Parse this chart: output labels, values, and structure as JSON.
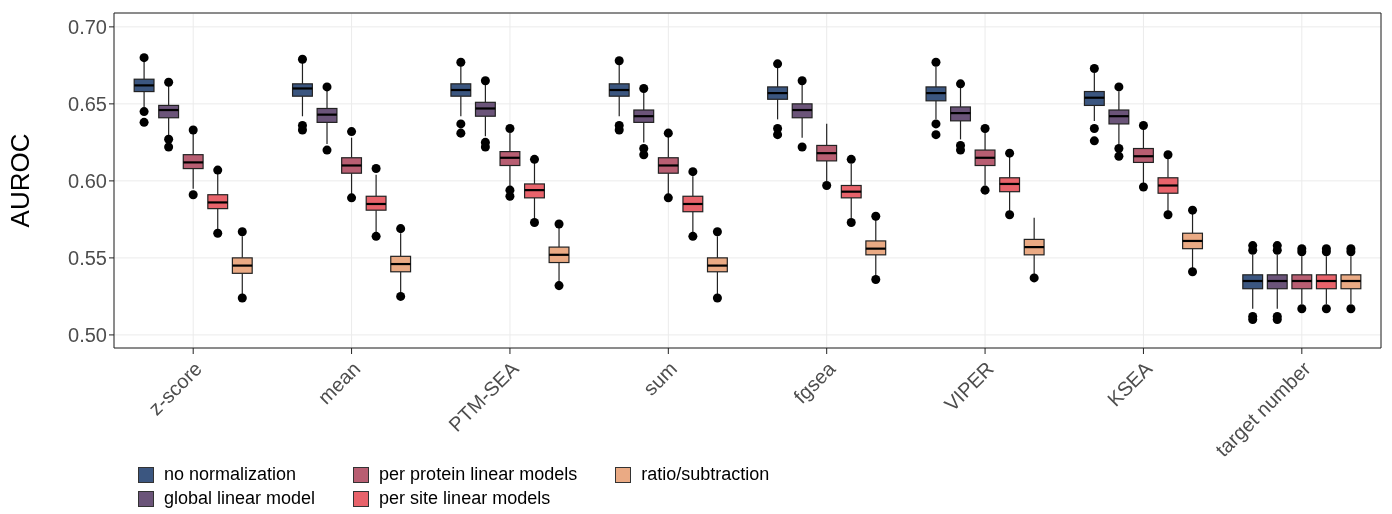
{
  "chart_data": {
    "type": "box",
    "ylabel": "AUROC",
    "categories": [
      "z-score",
      "mean",
      "PTM-SEA",
      "sum",
      "fgsea",
      "VIPER",
      "KSEA",
      "target number"
    ],
    "ylim": [
      0.4915,
      0.709
    ],
    "yticks": [
      {
        "value": 0.5,
        "label": "0.50"
      },
      {
        "value": 0.55,
        "label": "0.55"
      },
      {
        "value": 0.6,
        "label": "0.60"
      },
      {
        "value": 0.65,
        "label": "0.65"
      },
      {
        "value": 0.7,
        "label": "0.70"
      }
    ],
    "grid": true,
    "legend": "bottom",
    "marker": "circle",
    "series": [
      {
        "name": "no normalization",
        "color": "#3b5680",
        "boxes": [
          {
            "low": 0.648,
            "q1": 0.658,
            "median": 0.662,
            "q3": 0.666,
            "high": 0.678,
            "outliers": [
              0.68,
              0.645,
              0.638
            ]
          },
          {
            "low": 0.642,
            "q1": 0.655,
            "median": 0.66,
            "q3": 0.663,
            "high": 0.677,
            "outliers": [
              0.679,
              0.636,
              0.633
            ]
          },
          {
            "low": 0.642,
            "q1": 0.655,
            "median": 0.659,
            "q3": 0.663,
            "high": 0.675,
            "outliers": [
              0.677,
              0.637,
              0.631
            ]
          },
          {
            "low": 0.642,
            "q1": 0.655,
            "median": 0.659,
            "q3": 0.663,
            "high": 0.676,
            "outliers": [
              0.678,
              0.636,
              0.633
            ]
          },
          {
            "low": 0.64,
            "q1": 0.653,
            "median": 0.657,
            "q3": 0.661,
            "high": 0.674,
            "outliers": [
              0.676,
              0.634,
              0.63
            ]
          },
          {
            "low": 0.64,
            "q1": 0.652,
            "median": 0.657,
            "q3": 0.661,
            "high": 0.674,
            "outliers": [
              0.677,
              0.637,
              0.63
            ]
          },
          {
            "low": 0.639,
            "q1": 0.649,
            "median": 0.654,
            "q3": 0.658,
            "high": 0.67,
            "outliers": [
              0.673,
              0.634,
              0.626
            ]
          },
          {
            "low": 0.517,
            "q1": 0.53,
            "median": 0.535,
            "q3": 0.539,
            "high": 0.552,
            "outliers": [
              0.555,
              0.558,
              0.512,
              0.51
            ]
          }
        ]
      },
      {
        "name": "global linear model",
        "color": "#6b5479",
        "boxes": [
          {
            "low": 0.628,
            "q1": 0.641,
            "median": 0.646,
            "q3": 0.649,
            "high": 0.663,
            "outliers": [
              0.664,
              0.627,
              0.622
            ]
          },
          {
            "low": 0.624,
            "q1": 0.638,
            "median": 0.643,
            "q3": 0.647,
            "high": 0.66,
            "outliers": [
              0.661,
              0.62
            ]
          },
          {
            "low": 0.629,
            "q1": 0.642,
            "median": 0.647,
            "q3": 0.651,
            "high": 0.663,
            "outliers": [
              0.665,
              0.625,
              0.622
            ]
          },
          {
            "low": 0.625,
            "q1": 0.638,
            "median": 0.642,
            "q3": 0.646,
            "high": 0.658,
            "outliers": [
              0.66,
              0.621,
              0.617
            ]
          },
          {
            "low": 0.628,
            "q1": 0.641,
            "median": 0.646,
            "q3": 0.65,
            "high": 0.663,
            "outliers": [
              0.665,
              0.622
            ]
          },
          {
            "low": 0.627,
            "q1": 0.639,
            "median": 0.644,
            "q3": 0.648,
            "high": 0.662,
            "outliers": [
              0.663,
              0.623,
              0.62
            ]
          },
          {
            "low": 0.624,
            "q1": 0.637,
            "median": 0.642,
            "q3": 0.646,
            "high": 0.658,
            "outliers": [
              0.661,
              0.621,
              0.616
            ]
          },
          {
            "low": 0.517,
            "q1": 0.53,
            "median": 0.535,
            "q3": 0.539,
            "high": 0.552,
            "outliers": [
              0.555,
              0.558,
              0.512,
              0.51
            ]
          }
        ]
      },
      {
        "name": "per protein linear models",
        "color": "#b85e72",
        "boxes": [
          {
            "low": 0.595,
            "q1": 0.608,
            "median": 0.612,
            "q3": 0.617,
            "high": 0.631,
            "outliers": [
              0.633,
              0.591
            ]
          },
          {
            "low": 0.591,
            "q1": 0.605,
            "median": 0.61,
            "q3": 0.615,
            "high": 0.628,
            "outliers": [
              0.632,
              0.589
            ]
          },
          {
            "low": 0.596,
            "q1": 0.61,
            "median": 0.615,
            "q3": 0.619,
            "high": 0.631,
            "outliers": [
              0.634,
              0.594,
              0.59
            ]
          },
          {
            "low": 0.59,
            "q1": 0.605,
            "median": 0.61,
            "q3": 0.615,
            "high": 0.629,
            "outliers": [
              0.631,
              0.589
            ]
          },
          {
            "low": 0.6,
            "q1": 0.613,
            "median": 0.618,
            "q3": 0.623,
            "high": 0.637,
            "outliers": [
              0.597
            ]
          },
          {
            "low": 0.597,
            "q1": 0.61,
            "median": 0.615,
            "q3": 0.62,
            "high": 0.634,
            "outliers": [
              0.634,
              0.594
            ]
          },
          {
            "low": 0.598,
            "q1": 0.612,
            "median": 0.616,
            "q3": 0.621,
            "high": 0.634,
            "outliers": [
              0.636,
              0.596
            ]
          },
          {
            "low": 0.52,
            "q1": 0.53,
            "median": 0.535,
            "q3": 0.539,
            "high": 0.551,
            "outliers": [
              0.554,
              0.556,
              0.517
            ]
          }
        ]
      },
      {
        "name": "per site linear models",
        "color": "#e8636b",
        "boxes": [
          {
            "low": 0.568,
            "q1": 0.582,
            "median": 0.586,
            "q3": 0.591,
            "high": 0.605,
            "outliers": [
              0.607,
              0.566
            ]
          },
          {
            "low": 0.566,
            "q1": 0.581,
            "median": 0.585,
            "q3": 0.59,
            "high": 0.604,
            "outliers": [
              0.608,
              0.564
            ]
          },
          {
            "low": 0.575,
            "q1": 0.589,
            "median": 0.594,
            "q3": 0.598,
            "high": 0.612,
            "outliers": [
              0.614,
              0.573
            ]
          },
          {
            "low": 0.566,
            "q1": 0.58,
            "median": 0.585,
            "q3": 0.59,
            "high": 0.603,
            "outliers": [
              0.606,
              0.564
            ]
          },
          {
            "low": 0.576,
            "q1": 0.589,
            "median": 0.593,
            "q3": 0.597,
            "high": 0.611,
            "outliers": [
              0.614,
              0.573
            ]
          },
          {
            "low": 0.58,
            "q1": 0.593,
            "median": 0.598,
            "q3": 0.602,
            "high": 0.616,
            "outliers": [
              0.618,
              0.578
            ]
          },
          {
            "low": 0.58,
            "q1": 0.592,
            "median": 0.597,
            "q3": 0.602,
            "high": 0.615,
            "outliers": [
              0.617,
              0.578
            ]
          },
          {
            "low": 0.52,
            "q1": 0.53,
            "median": 0.535,
            "q3": 0.539,
            "high": 0.551,
            "outliers": [
              0.554,
              0.556,
              0.517
            ]
          }
        ]
      },
      {
        "name": "ratio/subtraction",
        "color": "#eaaa84",
        "boxes": [
          {
            "low": 0.526,
            "q1": 0.54,
            "median": 0.545,
            "q3": 0.55,
            "high": 0.564,
            "outliers": [
              0.567,
              0.524
            ]
          },
          {
            "low": 0.526,
            "q1": 0.541,
            "median": 0.546,
            "q3": 0.551,
            "high": 0.566,
            "outliers": [
              0.569,
              0.525
            ]
          },
          {
            "low": 0.534,
            "q1": 0.547,
            "median": 0.552,
            "q3": 0.557,
            "high": 0.57,
            "outliers": [
              0.572,
              0.532
            ]
          },
          {
            "low": 0.525,
            "q1": 0.541,
            "median": 0.545,
            "q3": 0.55,
            "high": 0.564,
            "outliers": [
              0.567,
              0.524
            ]
          },
          {
            "low": 0.538,
            "q1": 0.552,
            "median": 0.556,
            "q3": 0.561,
            "high": 0.575,
            "outliers": [
              0.577,
              0.536
            ]
          },
          {
            "low": 0.539,
            "q1": 0.552,
            "median": 0.557,
            "q3": 0.562,
            "high": 0.576,
            "outliers": [
              0.537
            ]
          },
          {
            "low": 0.543,
            "q1": 0.556,
            "median": 0.561,
            "q3": 0.566,
            "high": 0.579,
            "outliers": [
              0.581,
              0.541
            ]
          },
          {
            "low": 0.52,
            "q1": 0.53,
            "median": 0.535,
            "q3": 0.539,
            "high": 0.551,
            "outliers": [
              0.554,
              0.556,
              0.517
            ]
          }
        ]
      }
    ]
  }
}
